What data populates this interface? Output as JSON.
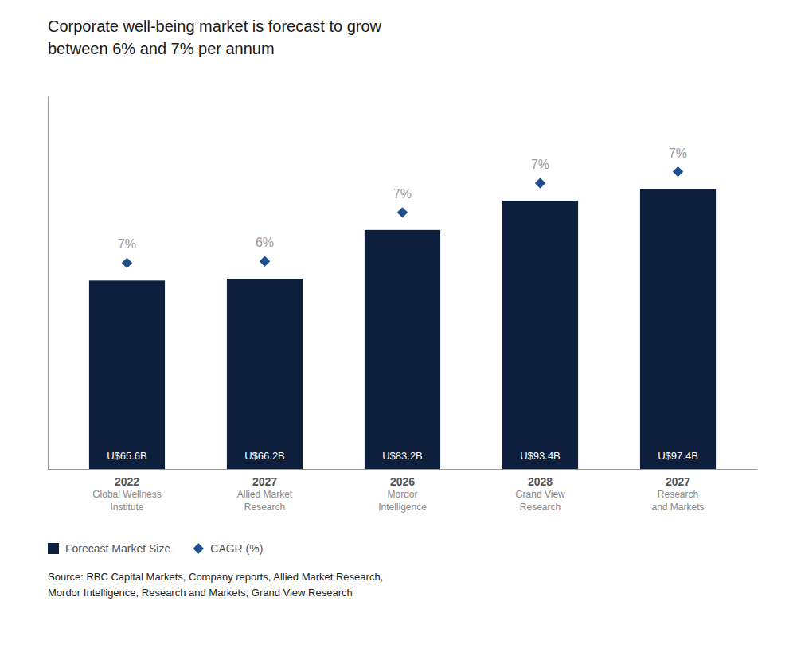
{
  "chart_data": {
    "type": "bar",
    "title": "Corporate well-being market is forecast to grow\nbetween 6% and 7% per annum",
    "categories": [
      "2022\nGlobal Wellness\nInstitute",
      "2027\nAllied Market\nResearch",
      "2026\nMordor\nIntelligence",
      "2028\nGrand View\nResearch",
      "2027\nResearch\nand Markets"
    ],
    "series": [
      {
        "name": "Forecast Market Size",
        "type": "bar",
        "color": "#0d1f3c",
        "values": [
          65.6,
          66.2,
          83.2,
          93.4,
          97.4
        ],
        "value_labels": [
          "U$65.6B",
          "U$66.2B",
          "U$83.2B",
          "U$93.4B",
          "U$97.4B"
        ]
      },
      {
        "name": "CAGR (%)",
        "type": "scatter",
        "marker": "diamond",
        "color": "#1f4e8c",
        "values": [
          7,
          6,
          7,
          7,
          7
        ],
        "value_labels": [
          "7%",
          "6%",
          "7%",
          "7%",
          "7%"
        ]
      }
    ],
    "ylim": [
      0,
      130
    ],
    "tick_labels": "x",
    "grid": false,
    "legend": "bottom",
    "data_labels": true,
    "annotations": [
      "Source: RBC Capital Markets, Company reports, Allied Market Research,\nMordor Intelligence, Research and Markets, Grand View Research"
    ]
  }
}
